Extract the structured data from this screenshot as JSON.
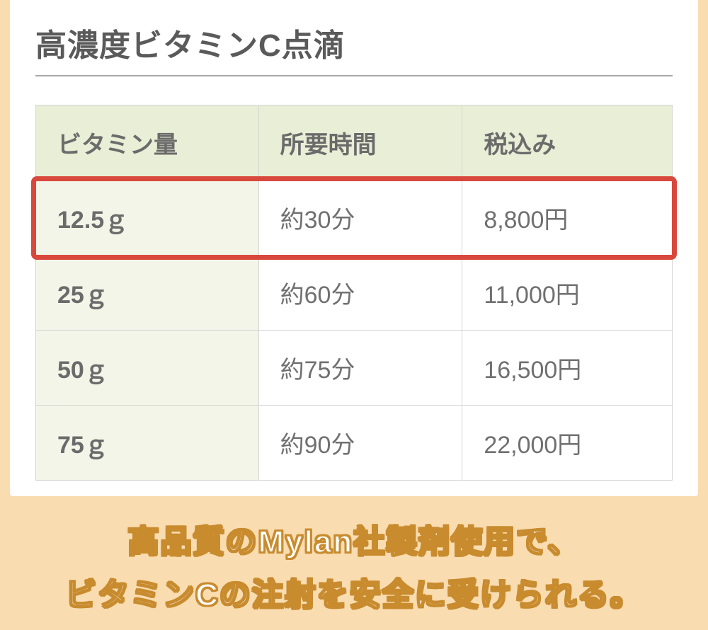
{
  "page": {
    "background_color": "#f9dcb0",
    "card_background": "#ffffff"
  },
  "title": "高濃度ビタミンC点滴",
  "table": {
    "columns": [
      "ビタミン量",
      "所要時間",
      "税込み"
    ],
    "rows": [
      {
        "amount": "12.5ｇ",
        "time": "約30分",
        "price": "8,800円"
      },
      {
        "amount": "25ｇ",
        "time": "約60分",
        "price": "11,000円"
      },
      {
        "amount": "50ｇ",
        "time": "約75分",
        "price": "16,500円"
      },
      {
        "amount": "75ｇ",
        "time": "約90分",
        "price": "22,000円"
      }
    ],
    "highlight_row_index": 0,
    "header_bg": "#e9eed6",
    "amount_col_bg": "#f3f5e8",
    "data_col_bg": "#ffffff",
    "border_color": "#d6d6d6",
    "highlight_border_color": "#d9483c",
    "highlight_border_width": 7,
    "header_fontsize": 34,
    "cell_fontsize": 34,
    "text_color": "#6b6b6b"
  },
  "caption": {
    "line1": "高品質のMylan社製剤使用で、",
    "line2": "ビタミンCの注射を安全に受けられる。",
    "fill_color": "#ffffff",
    "stroke_color": "#c88b2e",
    "fontsize": 44
  }
}
